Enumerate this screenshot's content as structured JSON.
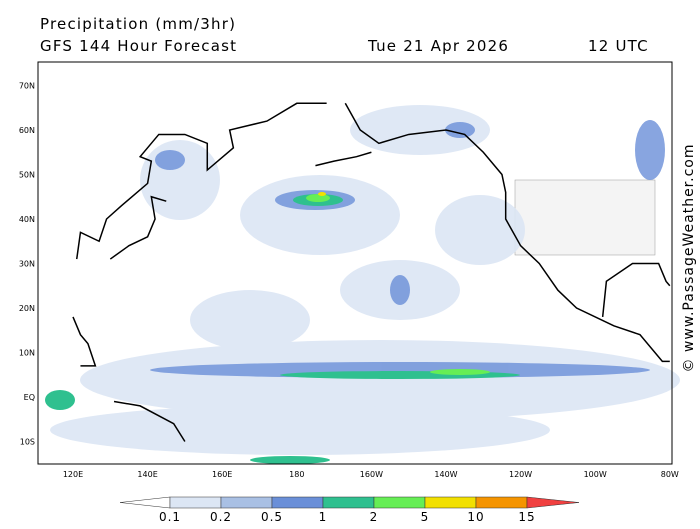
{
  "header": {
    "title": "Precipitation (mm/3hr)",
    "forecast": "GFS 144 Hour Forecast",
    "date": "Tue 21 Apr 2026",
    "time": "12 UTC"
  },
  "map": {
    "lat_labels": [
      "70N",
      "60N",
      "50N",
      "40N",
      "30N",
      "20N",
      "10N",
      "EQ",
      "10S"
    ],
    "lon_labels": [
      "120E",
      "140E",
      "160E",
      "180",
      "160W",
      "140W",
      "120W",
      "100W",
      "80W"
    ]
  },
  "legend": {
    "labels": [
      "0.1",
      "0.2",
      "0.5",
      "1",
      "2",
      "5",
      "10",
      "15"
    ],
    "colors": [
      "#ffffff",
      "#dce6f4",
      "#a9c0e4",
      "#6a8fd8",
      "#2fc08f",
      "#66ee55",
      "#f2e000",
      "#f59400",
      "#f04040"
    ]
  },
  "watermark": "© www.PassageWeather.com"
}
